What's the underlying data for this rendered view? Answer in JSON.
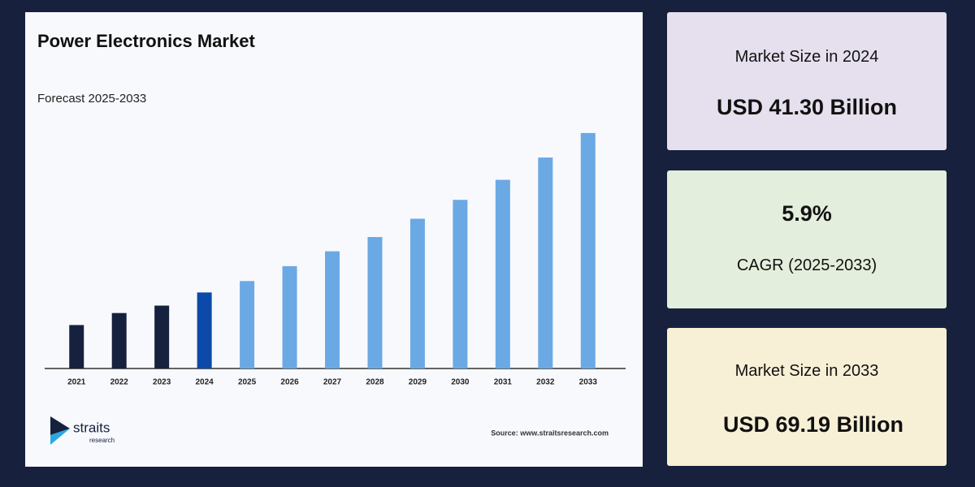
{
  "chart_data": {
    "type": "bar",
    "title": "Power Electronics Market",
    "subtitle": "Forecast 2025-2033",
    "categories": [
      "2021",
      "2022",
      "2023",
      "2024",
      "2025",
      "2026",
      "2027",
      "2028",
      "2029",
      "2030",
      "2031",
      "2032",
      "2033"
    ],
    "values": [
      35.6,
      37.7,
      39.0,
      41.3,
      43.3,
      45.9,
      48.5,
      51.0,
      54.2,
      57.5,
      61.0,
      64.9,
      69.19
    ],
    "colors": [
      "#16213e",
      "#16213e",
      "#16213e",
      "#0b4aa8",
      "#6ba9e5",
      "#6ba9e5",
      "#6ba9e5",
      "#6ba9e5",
      "#6ba9e5",
      "#6ba9e5",
      "#6ba9e5",
      "#6ba9e5",
      "#6ba9e5"
    ],
    "ylim": [
      28,
      74
    ],
    "source": "Source: www.straitsresearch.com"
  },
  "branding": {
    "name": "straits",
    "sub": "research"
  },
  "cards": [
    {
      "label": "Market Size in 2024",
      "value": "USD 41.30 Billion"
    },
    {
      "value": "5.9%",
      "label": "CAGR (2025-2033)"
    },
    {
      "label": "Market Size in 2033",
      "value": "USD 69.19 Billion"
    }
  ]
}
